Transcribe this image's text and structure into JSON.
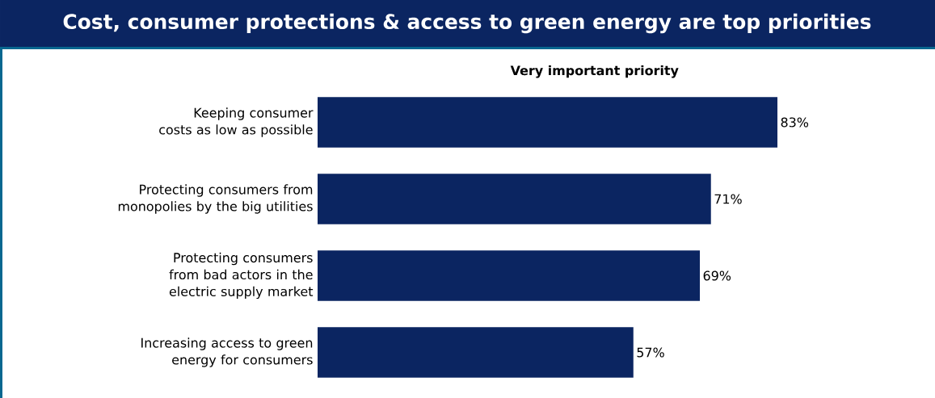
{
  "chart_data": {
    "type": "bar",
    "orientation": "horizontal",
    "title": "Cost, consumer protections & access to green energy are top priorities",
    "subtitle": "Very important priority",
    "categories": [
      "Keeping consumer costs as low as possible",
      "Protecting consumers from monopolies by the big utilities",
      "Protecting consumers from bad actors in the electric supply market",
      "Increasing access to green energy for consumers"
    ],
    "values": [
      83,
      71,
      69,
      57
    ],
    "value_labels": [
      "83%",
      "71%",
      "69%",
      "57%"
    ],
    "color": "#0b2561"
  }
}
